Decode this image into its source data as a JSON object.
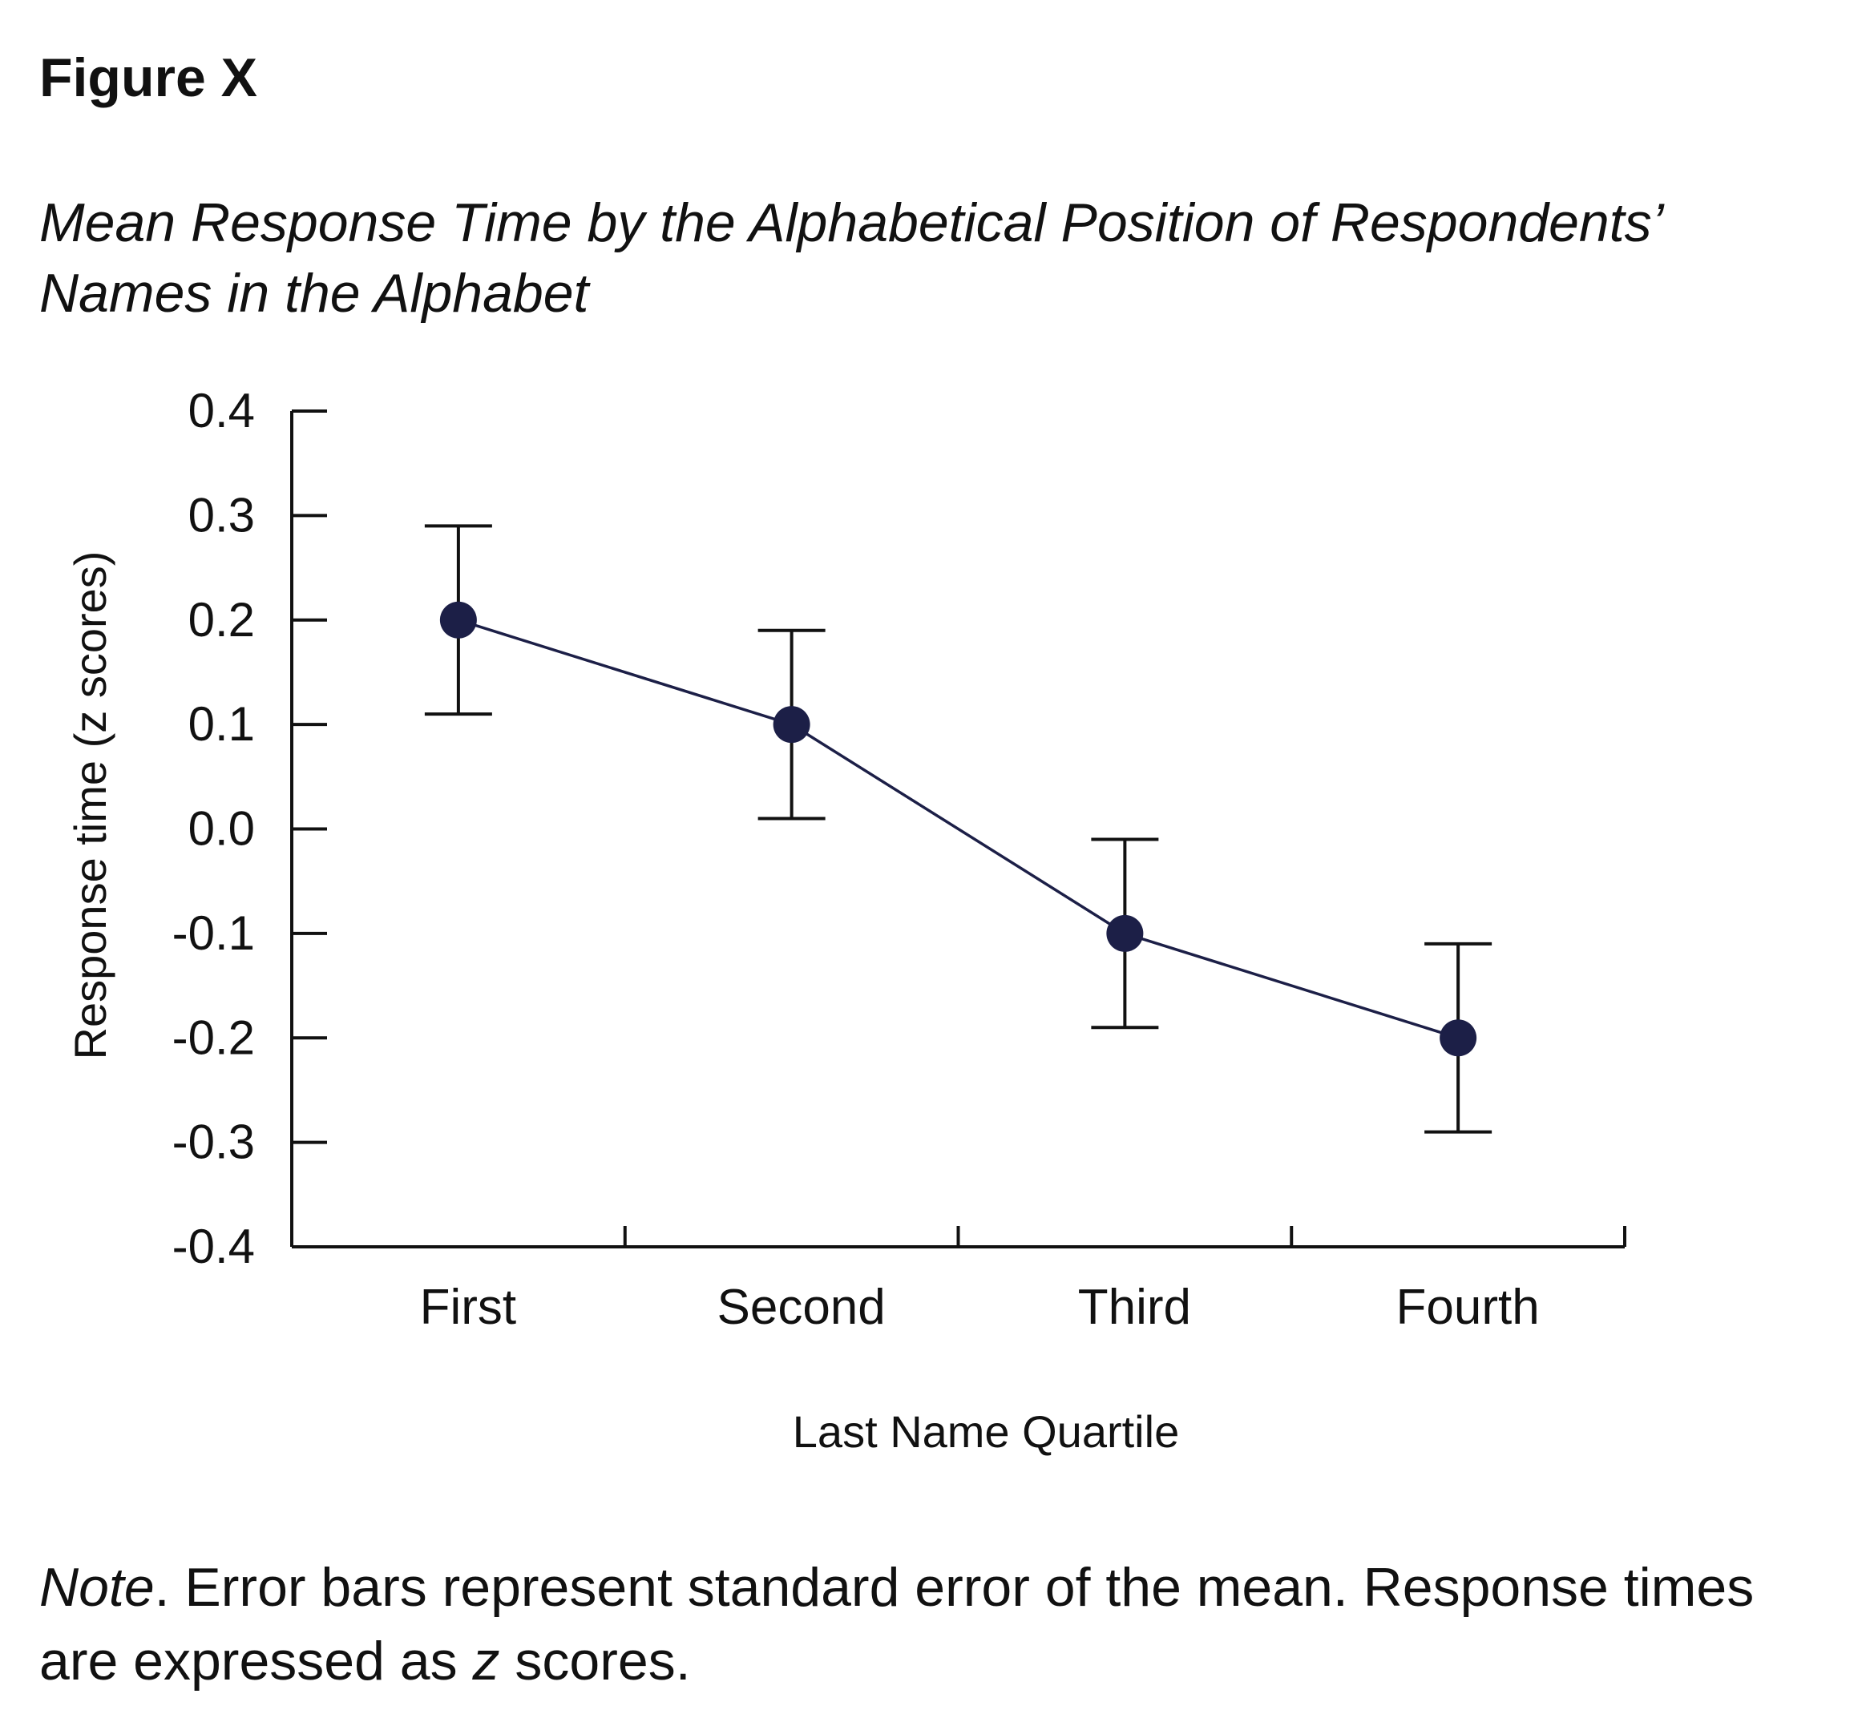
{
  "figure": {
    "label": "Figure X",
    "title": "Mean Response Time by the Alphabetical Position of Respondents’ Names in the Alphabet"
  },
  "note": {
    "label": "Note",
    "text_1": ". Error bars represent standard error of the mean. Response times are expressed as ",
    "z": "z",
    "text_2": " scores."
  },
  "colors": {
    "series": "#1c1f47",
    "axis": "#111111"
  },
  "chart_data": {
    "type": "line",
    "title": "",
    "xlabel": "Last Name Quartile",
    "ylabel": "Response time (z scores)",
    "categories": [
      "First",
      "Second",
      "Third",
      "Fourth"
    ],
    "series": [
      {
        "values": [
          0.2,
          0.1,
          -0.1,
          -0.2
        ],
        "error": [
          0.09,
          0.09,
          0.09,
          0.09
        ]
      }
    ],
    "ylim": [
      -0.4,
      0.4
    ],
    "yticks": [
      "0.4",
      "0.3",
      "0.2",
      "0.1",
      "0.0",
      "-0.1",
      "-0.2",
      "-0.3",
      "-0.4"
    ],
    "error_bars": "standard error of the mean",
    "grid": false,
    "legend": "none"
  }
}
